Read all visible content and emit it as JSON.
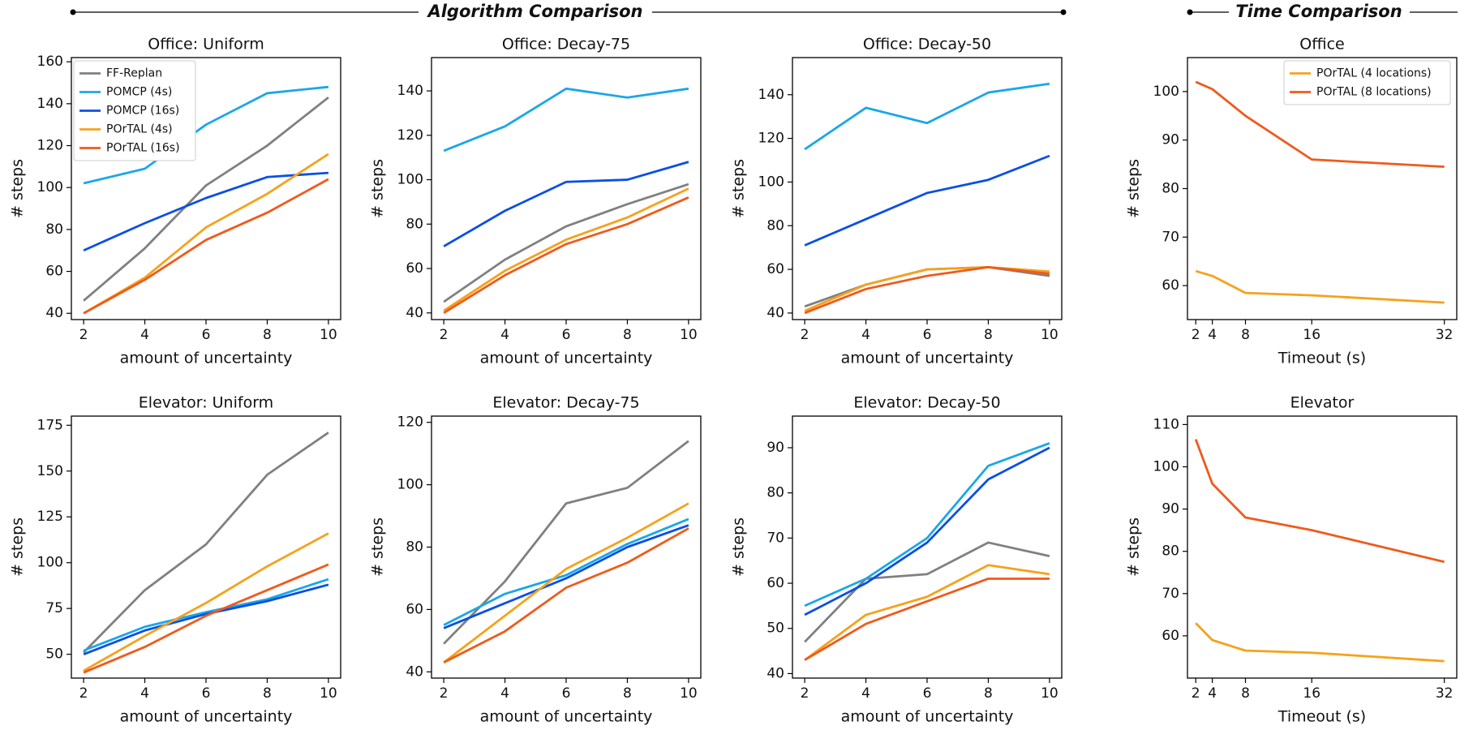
{
  "headers": [
    "Algorithm Comparison",
    "Time Comparison"
  ],
  "chart_data": [
    {
      "type": "line",
      "title": "Office: Uniform",
      "xlabel": "amount of uncertainty",
      "ylabel": "# steps",
      "x": [
        2,
        4,
        6,
        8,
        10
      ],
      "xlim": [
        1.6,
        10.4
      ],
      "xticks": [
        2,
        4,
        6,
        8,
        10
      ],
      "ylim": [
        37,
        162
      ],
      "yticks": [
        40,
        60,
        80,
        100,
        120,
        140,
        160
      ],
      "legend": "upper left",
      "series": [
        {
          "name": "FF-Replan",
          "color": "#808080",
          "values": [
            46,
            71,
            101,
            120,
            143
          ]
        },
        {
          "name": "POMCP (4s)",
          "color": "#1aa7e8",
          "values": [
            102,
            109,
            130,
            145,
            148
          ]
        },
        {
          "name": "POMCP (16s)",
          "color": "#0a4fe6",
          "values": [
            70,
            83,
            95,
            105,
            107
          ]
        },
        {
          "name": "POrTAL (4s)",
          "color": "#f5a21b",
          "values": [
            40,
            57,
            81,
            97,
            116
          ]
        },
        {
          "name": "POrTAL (16s)",
          "color": "#f05a1b",
          "values": [
            40,
            56,
            75,
            88,
            104
          ]
        }
      ]
    },
    {
      "type": "line",
      "title": "Office: Decay-75",
      "xlabel": "amount of uncertainty",
      "ylabel": "# steps",
      "x": [
        2,
        4,
        6,
        8,
        10
      ],
      "xlim": [
        1.6,
        10.4
      ],
      "xticks": [
        2,
        4,
        6,
        8,
        10
      ],
      "ylim": [
        37,
        155
      ],
      "yticks": [
        40,
        60,
        80,
        100,
        120,
        140
      ],
      "series": [
        {
          "color": "#808080",
          "values": [
            45,
            64,
            79,
            89,
            98
          ]
        },
        {
          "color": "#1aa7e8",
          "values": [
            113,
            124,
            141,
            137,
            141
          ]
        },
        {
          "color": "#0a4fe6",
          "values": [
            70,
            86,
            99,
            100,
            108
          ]
        },
        {
          "color": "#f5a21b",
          "values": [
            41,
            59,
            73,
            83,
            96
          ]
        },
        {
          "color": "#f05a1b",
          "values": [
            40,
            57,
            71,
            80,
            92
          ]
        }
      ]
    },
    {
      "type": "line",
      "title": "Office: Decay-50",
      "xlabel": "amount of uncertainty",
      "ylabel": "# steps",
      "x": [
        2,
        4,
        6,
        8,
        10
      ],
      "xlim": [
        1.6,
        10.4
      ],
      "xticks": [
        2,
        4,
        6,
        8,
        10
      ],
      "ylim": [
        37,
        157
      ],
      "yticks": [
        40,
        60,
        80,
        100,
        120,
        140
      ],
      "series": [
        {
          "color": "#808080",
          "values": [
            43,
            53,
            60,
            61,
            57
          ]
        },
        {
          "color": "#1aa7e8",
          "values": [
            115,
            134,
            127,
            141,
            145
          ]
        },
        {
          "color": "#0a4fe6",
          "values": [
            71,
            83,
            95,
            101,
            112
          ]
        },
        {
          "color": "#f5a21b",
          "values": [
            41,
            53,
            60,
            61,
            59
          ]
        },
        {
          "color": "#f05a1b",
          "values": [
            40,
            51,
            57,
            61,
            58
          ]
        }
      ]
    },
    {
      "type": "line",
      "title": "Office",
      "xlabel": "Timeout (s)",
      "ylabel": "# steps",
      "x": [
        2,
        4,
        8,
        16,
        32
      ],
      "xlim": [
        1,
        33.5
      ],
      "xticks": [
        2,
        4,
        8,
        16,
        32
      ],
      "ylim": [
        53,
        107
      ],
      "yticks": [
        60,
        70,
        80,
        90,
        100
      ],
      "legend": "upper right",
      "series": [
        {
          "name": "POrTAL (4 locations)",
          "color": "#f5a21b",
          "values": [
            63,
            62,
            58.5,
            58,
            56.5
          ]
        },
        {
          "name": "POrTAL (8 locations)",
          "color": "#f05a1b",
          "values": [
            102,
            100.5,
            95,
            86,
            84.5
          ]
        }
      ]
    },
    {
      "type": "line",
      "title": "Elevator: Uniform",
      "xlabel": "amount of uncertainty",
      "ylabel": "# steps",
      "x": [
        2,
        4,
        6,
        8,
        10
      ],
      "xlim": [
        1.6,
        10.4
      ],
      "xticks": [
        2,
        4,
        6,
        8,
        10
      ],
      "ylim": [
        37,
        180
      ],
      "yticks": [
        50,
        75,
        100,
        125,
        150,
        175
      ],
      "series": [
        {
          "color": "#808080",
          "values": [
            51,
            85,
            110,
            148,
            171
          ]
        },
        {
          "color": "#1aa7e8",
          "values": [
            52,
            65,
            73,
            80,
            91
          ]
        },
        {
          "color": "#0a4fe6",
          "values": [
            50,
            63,
            72,
            79,
            88
          ]
        },
        {
          "color": "#f5a21b",
          "values": [
            41,
            60,
            78,
            98,
            116
          ]
        },
        {
          "color": "#f05a1b",
          "values": [
            40,
            54,
            71,
            85,
            99
          ]
        }
      ]
    },
    {
      "type": "line",
      "title": "Elevator: Decay-75",
      "xlabel": "amount of uncertainty",
      "ylabel": "# steps",
      "x": [
        2,
        4,
        6,
        8,
        10
      ],
      "xlim": [
        1.6,
        10.4
      ],
      "xticks": [
        2,
        4,
        6,
        8,
        10
      ],
      "ylim": [
        38,
        122
      ],
      "yticks": [
        40,
        60,
        80,
        100,
        120
      ],
      "series": [
        {
          "color": "#808080",
          "values": [
            49,
            69,
            94,
            99,
            114
          ]
        },
        {
          "color": "#1aa7e8",
          "values": [
            55,
            65,
            71,
            81,
            89
          ]
        },
        {
          "color": "#0a4fe6",
          "values": [
            54,
            62,
            70,
            80,
            87
          ]
        },
        {
          "color": "#f5a21b",
          "values": [
            43,
            58,
            73,
            83,
            94
          ]
        },
        {
          "color": "#f05a1b",
          "values": [
            43,
            53,
            67,
            75,
            86
          ]
        }
      ]
    },
    {
      "type": "line",
      "title": "Elevator: Decay-50",
      "xlabel": "amount of uncertainty",
      "ylabel": "# steps",
      "x": [
        2,
        4,
        6,
        8,
        10
      ],
      "xlim": [
        1.6,
        10.4
      ],
      "xticks": [
        2,
        4,
        6,
        8,
        10
      ],
      "ylim": [
        39,
        97
      ],
      "yticks": [
        40,
        50,
        60,
        70,
        80,
        90
      ],
      "series": [
        {
          "color": "#808080",
          "values": [
            47,
            61,
            62,
            69,
            66
          ]
        },
        {
          "color": "#1aa7e8",
          "values": [
            55,
            61,
            70,
            86,
            91
          ]
        },
        {
          "color": "#0a4fe6",
          "values": [
            53,
            60,
            69,
            83,
            90
          ]
        },
        {
          "color": "#f5a21b",
          "values": [
            43,
            53,
            57,
            64,
            62
          ]
        },
        {
          "color": "#f05a1b",
          "values": [
            43,
            51,
            56,
            61,
            61
          ]
        }
      ]
    },
    {
      "type": "line",
      "title": "Elevator",
      "xlabel": "Timeout (s)",
      "ylabel": "# steps",
      "x": [
        2,
        4,
        8,
        16,
        32
      ],
      "xlim": [
        1,
        33.5
      ],
      "xticks": [
        2,
        4,
        8,
        16,
        32
      ],
      "ylim": [
        50,
        112
      ],
      "yticks": [
        60,
        70,
        80,
        90,
        100,
        110
      ],
      "series": [
        {
          "color": "#f5a21b",
          "values": [
            63,
            59,
            56.5,
            56,
            54
          ]
        },
        {
          "color": "#f05a1b",
          "values": [
            106.5,
            96,
            88,
            85,
            77.5
          ]
        }
      ]
    }
  ]
}
